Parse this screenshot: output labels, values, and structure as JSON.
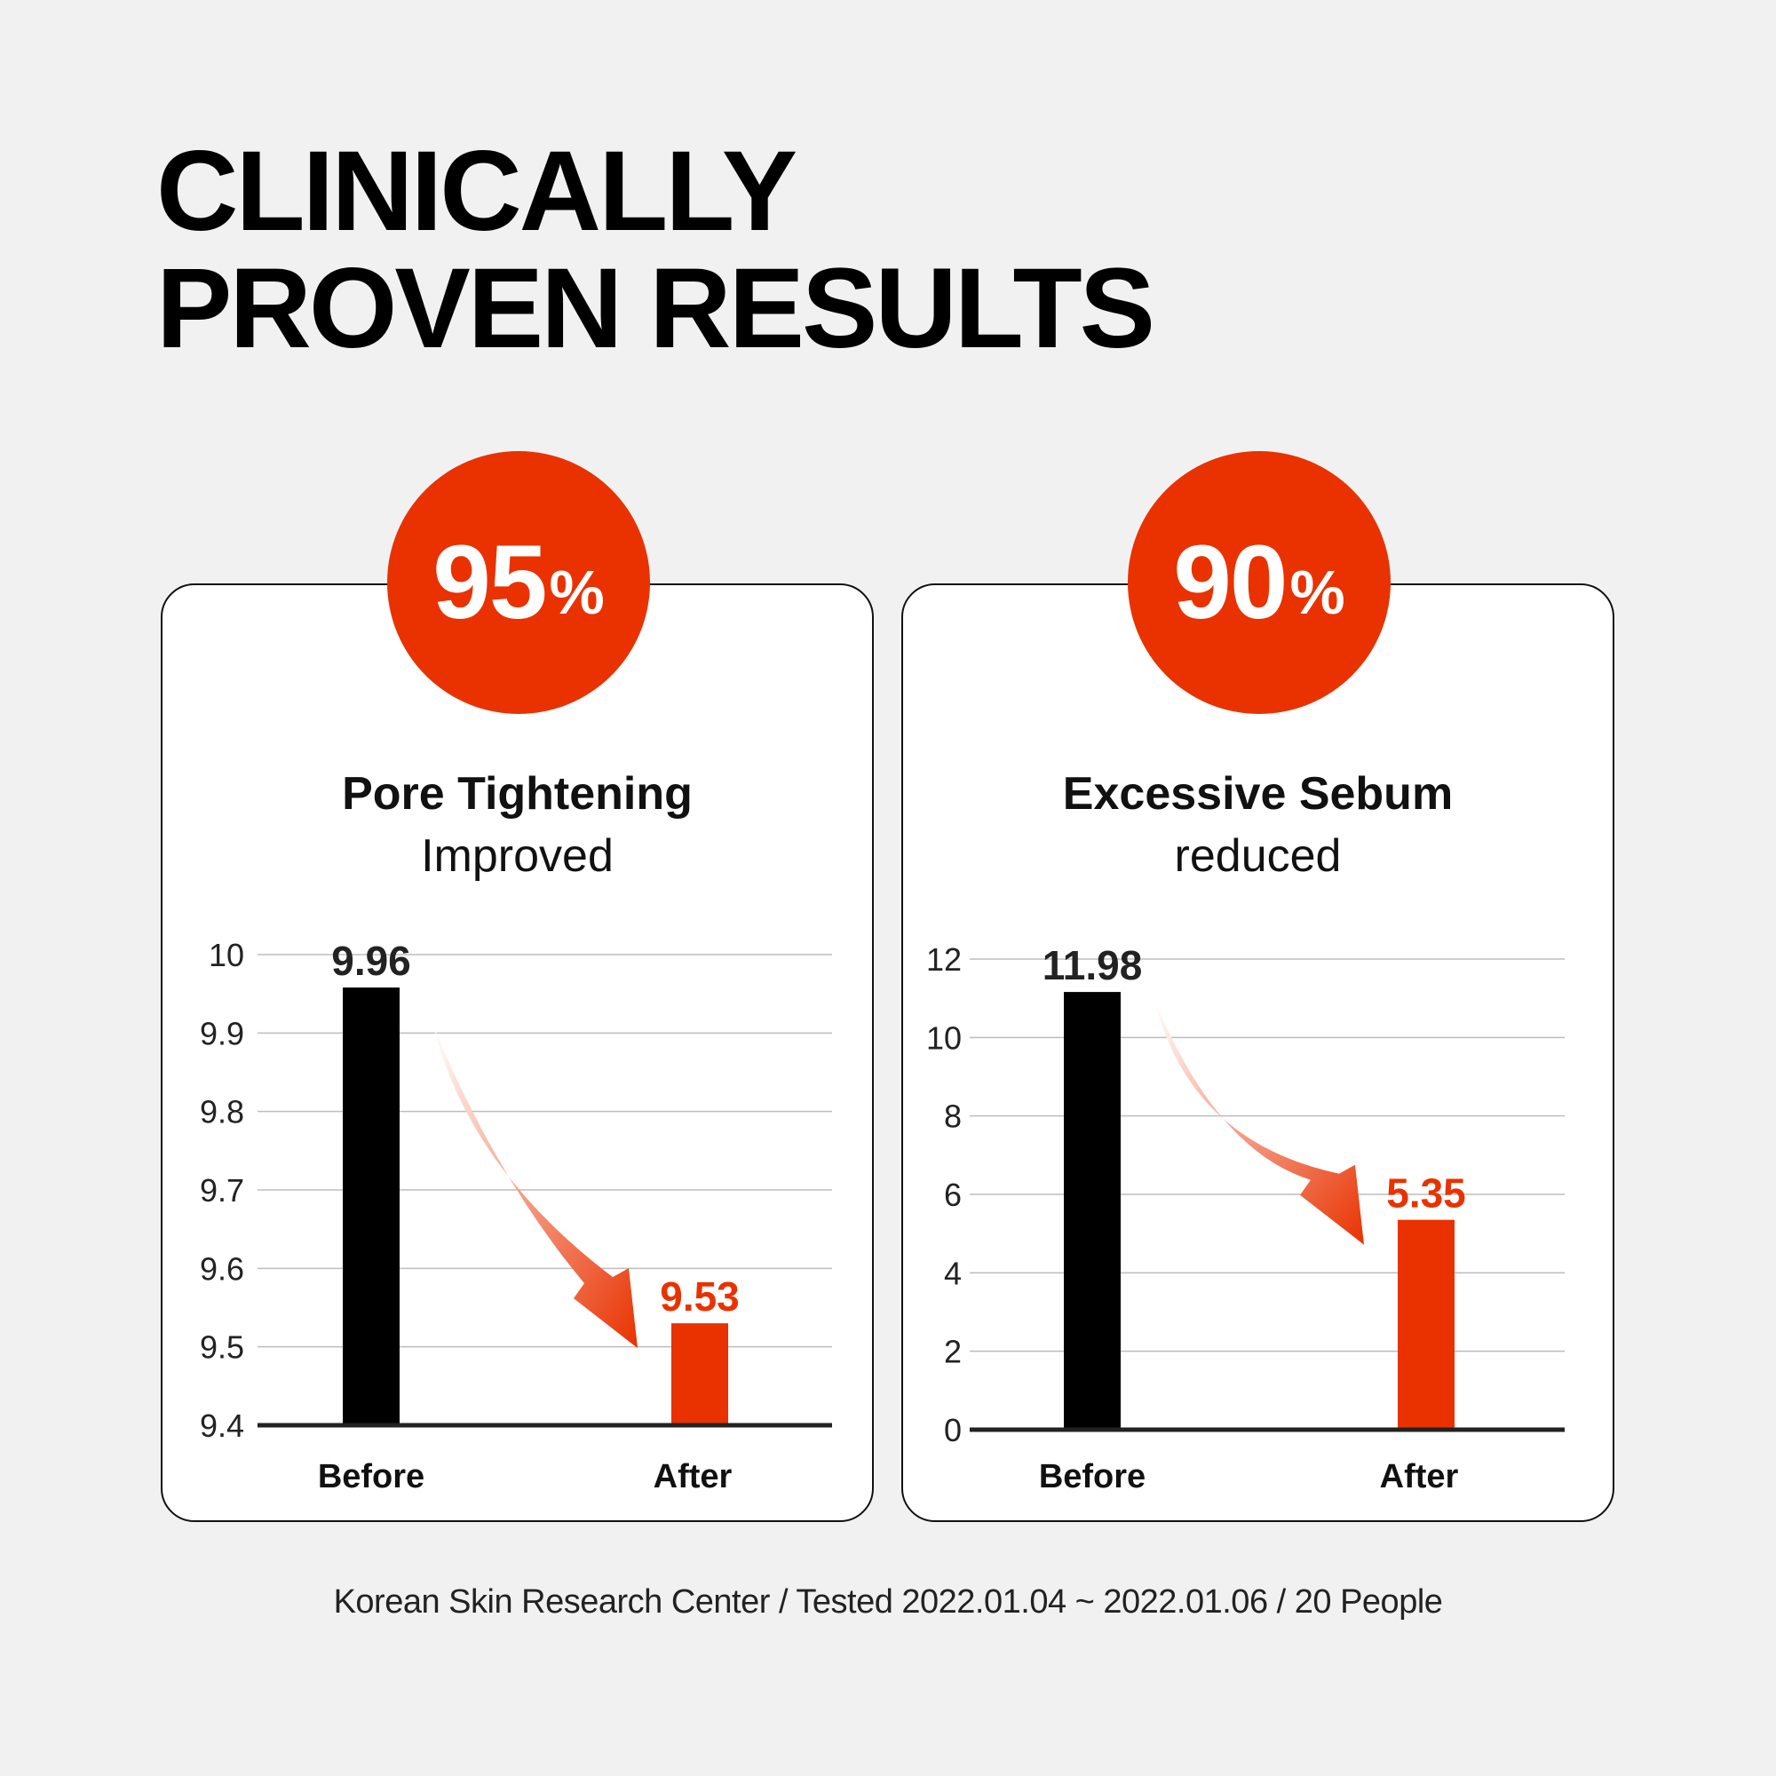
{
  "headline": {
    "line1": "CLINICALLY",
    "line2": "PROVEN RESULTS"
  },
  "colors": {
    "accent": "#e93200",
    "dark": "#000000",
    "background": "#f1f1f1",
    "card": "#ffffff"
  },
  "cards": [
    {
      "badge_number": "95",
      "badge_unit": "%",
      "title": "Pore Tightening",
      "subtitle": "Improved"
    },
    {
      "badge_number": "90",
      "badge_unit": "%",
      "title": "Excessive Sebum",
      "subtitle": "reduced"
    }
  ],
  "chart_data": [
    {
      "type": "bar",
      "title": "Pore Tightening",
      "categories": [
        "Before",
        "After"
      ],
      "values": [
        9.96,
        9.53
      ],
      "value_labels": [
        "9.96",
        "9.53"
      ],
      "ylim": [
        9.4,
        10
      ],
      "yticks": [
        "9.4",
        "9.5",
        "9.6",
        "9.7",
        "9.8",
        "9.9",
        "10"
      ],
      "grid": true,
      "bar_colors": [
        "#000000",
        "#e93200"
      ],
      "label_colors": [
        "#222222",
        "#e93200"
      ],
      "arrow": "before-to-after"
    },
    {
      "type": "bar",
      "title": "Excessive Sebum",
      "categories": [
        "Before",
        "After"
      ],
      "values": [
        11.98,
        5.35
      ],
      "value_labels": [
        "11.98",
        "5.35"
      ],
      "ylim": [
        0,
        12
      ],
      "yticks": [
        "0",
        "2",
        "4",
        "6",
        "8",
        "10",
        "12"
      ],
      "grid": true,
      "bar_colors": [
        "#000000",
        "#e93200"
      ],
      "label_colors": [
        "#222222",
        "#e93200"
      ],
      "arrow": "before-to-after"
    }
  ],
  "footnote": "Korean Skin Research Center / Tested 2022.01.04 ~ 2022.01.06 / 20 People"
}
